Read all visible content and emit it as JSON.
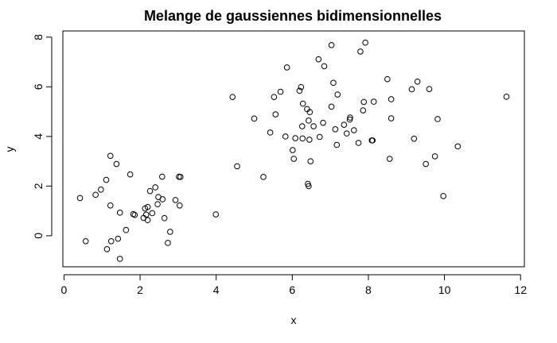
{
  "chart_data": {
    "type": "scatter",
    "title": "Melange de gaussiennes bidimensionnelles",
    "xlabel": "x",
    "ylabel": "y",
    "xlim": [
      -0.03,
      12.1
    ],
    "ylim": [
      -1.25,
      8.25
    ],
    "xticks": [
      0,
      2,
      4,
      6,
      8,
      10,
      12
    ],
    "yticks": [
      0,
      2,
      4,
      6,
      8
    ],
    "grid": false,
    "legend": "none",
    "marker": "open-circle",
    "colors": {
      "marker": "#000000",
      "frame": "#000000",
      "background": "#ffffff"
    },
    "points": [
      [
        0.42,
        1.52
      ],
      [
        0.57,
        -0.22
      ],
      [
        0.83,
        1.65
      ],
      [
        0.97,
        1.86
      ],
      [
        1.11,
        2.25
      ],
      [
        1.13,
        -0.54
      ],
      [
        1.22,
        3.22
      ],
      [
        1.22,
        1.22
      ],
      [
        1.24,
        -0.22
      ],
      [
        1.38,
        2.89
      ],
      [
        1.42,
        -0.12
      ],
      [
        1.47,
        -0.93
      ],
      [
        1.47,
        0.93
      ],
      [
        1.63,
        0.23
      ],
      [
        1.74,
        2.47
      ],
      [
        1.82,
        0.87
      ],
      [
        1.86,
        0.84
      ],
      [
        2.09,
        0.72
      ],
      [
        2.13,
        1.1
      ],
      [
        2.16,
        0.85
      ],
      [
        2.2,
        0.63
      ],
      [
        2.2,
        1.16
      ],
      [
        2.26,
        1.8
      ],
      [
        2.32,
        0.91
      ],
      [
        2.4,
        1.95
      ],
      [
        2.46,
        1.27
      ],
      [
        2.48,
        1.56
      ],
      [
        2.58,
        2.38
      ],
      [
        2.59,
        1.47
      ],
      [
        2.64,
        0.71
      ],
      [
        2.73,
        -0.29
      ],
      [
        2.79,
        0.16
      ],
      [
        2.93,
        1.44
      ],
      [
        3.02,
        2.38
      ],
      [
        3.04,
        1.22
      ],
      [
        3.06,
        2.37
      ],
      [
        3.99,
        0.86
      ],
      [
        4.43,
        5.59
      ],
      [
        4.55,
        2.8
      ],
      [
        5.0,
        4.72
      ],
      [
        5.24,
        2.37
      ],
      [
        5.42,
        4.16
      ],
      [
        5.52,
        5.59
      ],
      [
        5.56,
        4.89
      ],
      [
        5.69,
        5.8
      ],
      [
        5.82,
        4.0
      ],
      [
        5.86,
        6.78
      ],
      [
        6.01,
        3.45
      ],
      [
        6.04,
        3.1
      ],
      [
        6.08,
        3.93
      ],
      [
        6.19,
        5.84
      ],
      [
        6.23,
        5.99
      ],
      [
        6.26,
        4.41
      ],
      [
        6.27,
        3.92
      ],
      [
        6.28,
        5.32
      ],
      [
        6.39,
        5.1
      ],
      [
        6.41,
        2.09
      ],
      [
        6.43,
        2.0
      ],
      [
        6.43,
        4.64
      ],
      [
        6.45,
        3.87
      ],
      [
        6.46,
        4.98
      ],
      [
        6.48,
        3.0
      ],
      [
        6.56,
        4.41
      ],
      [
        6.69,
        7.11
      ],
      [
        6.72,
        3.98
      ],
      [
        6.81,
        4.55
      ],
      [
        6.84,
        6.83
      ],
      [
        7.03,
        5.2
      ],
      [
        7.03,
        7.68
      ],
      [
        7.08,
        6.16
      ],
      [
        7.13,
        4.29
      ],
      [
        7.17,
        3.66
      ],
      [
        7.19,
        5.69
      ],
      [
        7.36,
        4.47
      ],
      [
        7.43,
        4.12
      ],
      [
        7.51,
        4.68
      ],
      [
        7.52,
        4.76
      ],
      [
        7.62,
        4.25
      ],
      [
        7.74,
        3.74
      ],
      [
        7.79,
        7.42
      ],
      [
        7.86,
        5.05
      ],
      [
        7.88,
        5.39
      ],
      [
        7.92,
        7.78
      ],
      [
        8.09,
        3.84
      ],
      [
        8.11,
        3.84
      ],
      [
        8.14,
        5.4
      ],
      [
        8.5,
        6.31
      ],
      [
        8.56,
        3.1
      ],
      [
        8.6,
        4.73
      ],
      [
        8.6,
        5.5
      ],
      [
        9.14,
        5.9
      ],
      [
        9.2,
        3.91
      ],
      [
        9.29,
        6.21
      ],
      [
        9.51,
        2.89
      ],
      [
        9.6,
        5.91
      ],
      [
        9.75,
        3.2
      ],
      [
        9.82,
        4.7
      ],
      [
        9.97,
        1.6
      ],
      [
        10.35,
        3.6
      ],
      [
        11.63,
        5.6
      ]
    ]
  }
}
